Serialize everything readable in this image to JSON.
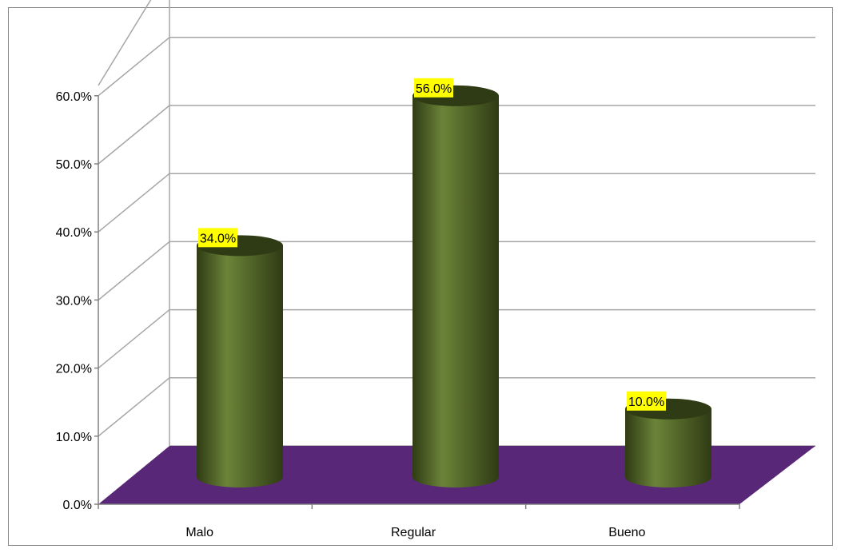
{
  "chart_data": {
    "type": "bar",
    "title": "",
    "xlabel": "",
    "ylabel": "",
    "categories": [
      "Malo",
      "Regular",
      "Bueno"
    ],
    "values": [
      34.0,
      56.0,
      10.0
    ],
    "data_labels": [
      "34.0%",
      "56.0%",
      "10.0%"
    ],
    "y_ticks": [
      0,
      10,
      20,
      30,
      40,
      50,
      60
    ],
    "y_tick_labels": [
      "0.0%",
      "10.0%",
      "20.0%",
      "30.0%",
      "40.0%",
      "50.0%",
      "60.0%"
    ],
    "ylim": [
      0,
      60
    ],
    "grid": true,
    "legend": "none",
    "style": "3d-cylinder",
    "colors": {
      "bar": "#4f6228",
      "bar_light": "#6b8438",
      "bar_dark": "#2f3b14",
      "floor": "#582777",
      "label_bg": "#ffff00",
      "grid": "#a6a6a6",
      "frame": "#888888"
    }
  }
}
